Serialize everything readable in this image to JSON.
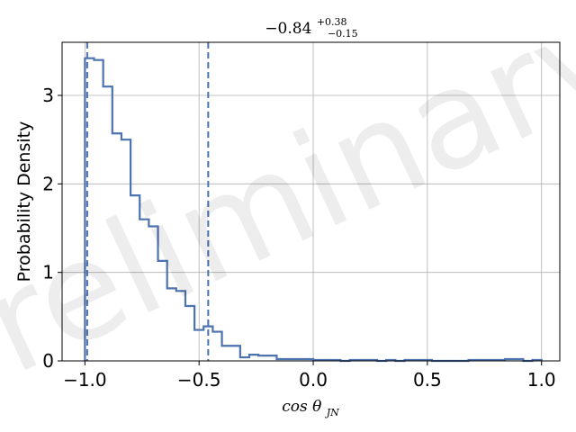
{
  "chart_data": {
    "type": "histogram",
    "title": {
      "base": "−0.84",
      "sup": "+0.38",
      "sub": "−0.15"
    },
    "xlabel": {
      "base": "cos θ",
      "sub": "JN"
    },
    "ylabel": "Probability Density",
    "watermark": "Preliminary",
    "xlim": [
      -1.1,
      1.08
    ],
    "ylim": [
      0,
      3.6
    ],
    "xticks": [
      -1.0,
      -0.5,
      0.0,
      0.5,
      1.0
    ],
    "xtick_labels": [
      "−1.0",
      "−0.5",
      "0.0",
      "0.5",
      "1.0"
    ],
    "yticks": [
      0,
      1,
      2,
      3
    ],
    "ytick_labels": [
      "0",
      "1",
      "2",
      "3"
    ],
    "grid": true,
    "color": "#4c72b0",
    "bin_edges": [
      -1.0,
      -0.96,
      -0.92,
      -0.88,
      -0.84,
      -0.8,
      -0.76,
      -0.72,
      -0.68,
      -0.64,
      -0.6,
      -0.56,
      -0.52,
      -0.48,
      -0.44,
      -0.4,
      -0.36,
      -0.32,
      -0.28,
      -0.24,
      -0.2,
      -0.16,
      -0.12,
      -0.08,
      -0.04,
      0.0,
      0.04,
      0.08,
      0.12,
      0.16,
      0.2,
      0.24,
      0.28,
      0.32,
      0.36,
      0.4,
      0.44,
      0.48,
      0.52,
      0.56,
      0.6,
      0.64,
      0.68,
      0.72,
      0.76,
      0.8,
      0.84,
      0.88,
      0.92,
      0.96,
      1.0
    ],
    "densities": [
      3.42,
      3.4,
      3.1,
      2.57,
      2.5,
      1.87,
      1.6,
      1.52,
      1.13,
      0.82,
      0.79,
      0.62,
      0.35,
      0.39,
      0.33,
      0.17,
      0.17,
      0.04,
      0.07,
      0.06,
      0.06,
      0.02,
      0.02,
      0.02,
      0.02,
      0.01,
      0.01,
      0.01,
      0.0,
      0.01,
      0.01,
      0.01,
      0.0,
      0.01,
      0.0,
      0.01,
      0.01,
      0.01,
      0.0,
      0.0,
      0.0,
      0.0,
      0.01,
      0.01,
      0.01,
      0.01,
      0.02,
      0.02,
      0.0,
      0.01
    ],
    "vlines": [
      -0.99,
      -0.46
    ],
    "vline_style": "dashed"
  }
}
